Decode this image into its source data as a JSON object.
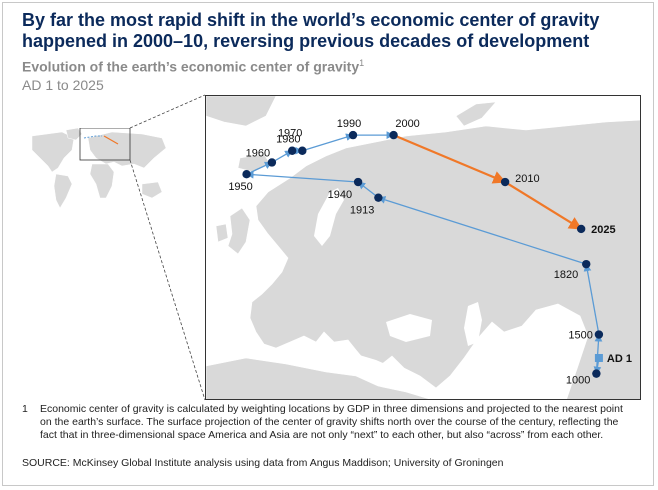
{
  "header": {
    "title": "By far the most rapid shift in the world’s economic center of gravity happened in 2000–10, reversing previous decades of development",
    "subtitle": "Evolution of the earth’s economic center of gravity",
    "subtitle_sup": "1",
    "range": "AD 1 to 2025"
  },
  "colors": {
    "title": "#0b2a5b",
    "point": "#0b2a5b",
    "early_path": "#5b9bd5",
    "recent_path": "#f07828",
    "land": "#d9d9d9"
  },
  "map_points": [
    {
      "label": "AD 1",
      "lon": 63.5,
      "lat": 40.5,
      "highlight": true
    },
    {
      "label": "1000",
      "lon": 63.0,
      "lat": 38.5
    },
    {
      "label": "1500",
      "lon": 63.5,
      "lat": 43.5
    },
    {
      "label": "1820",
      "lon": 61.0,
      "lat": 52.5
    },
    {
      "label": "1913",
      "lon": 20.0,
      "lat": 61.0
    },
    {
      "label": "1940",
      "lon": 16.0,
      "lat": 63.0
    },
    {
      "label": "1950",
      "lon": -6.0,
      "lat": 64.0
    },
    {
      "label": "1960",
      "lon": -1.0,
      "lat": 65.5
    },
    {
      "label": "1970",
      "lon": 3.0,
      "lat": 67.0
    },
    {
      "label": "1980",
      "lon": 5.0,
      "lat": 67.0
    },
    {
      "label": "1990",
      "lon": 15.0,
      "lat": 69.0
    },
    {
      "label": "2000",
      "lon": 23.0,
      "lat": 69.0
    },
    {
      "label": "2010",
      "lon": 45.0,
      "lat": 63.0
    },
    {
      "label": "2025",
      "lon": 60.0,
      "lat": 57.0,
      "bold": true
    }
  ],
  "footnote": {
    "number": "1",
    "text": "Economic center of gravity is calculated by weighting locations by GDP in three dimensions and projected to the nearest point on the earth’s surface. The surface projection of the center of gravity shifts north over the course of the century, reflecting the fact that in three-dimensional space America and Asia are not only “next” to each other, but also “across” from each other."
  },
  "source": "SOURCE: McKinsey Global Institute analysis using data from Angus Maddison; University of Groningen"
}
